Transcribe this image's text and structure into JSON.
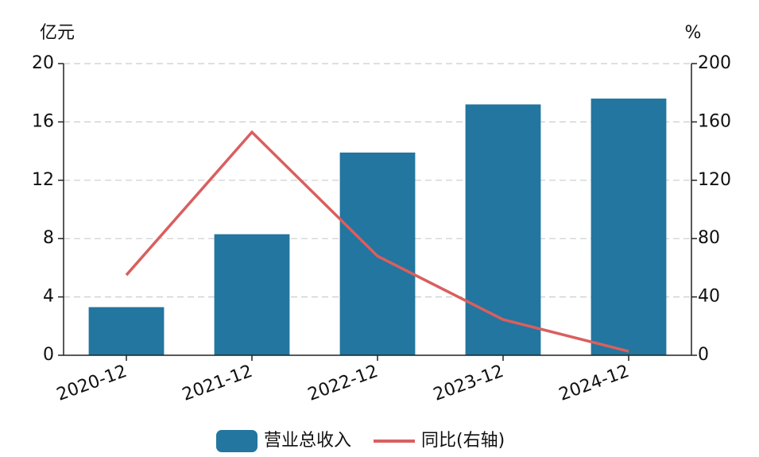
{
  "chart_data": {
    "type": "bar",
    "y_unit": "亿元",
    "y2_unit": "%",
    "categories": [
      "2020-12",
      "2021-12",
      "2022-12",
      "2023-12",
      "2024-12"
    ],
    "series": [
      {
        "name": "营业总收入",
        "type": "bar",
        "color": "#22769f",
        "values": [
          3.3,
          8.3,
          13.9,
          17.2,
          17.6
        ]
      },
      {
        "name": "同比(右轴)",
        "type": "line",
        "axis": "y2",
        "color": "#d95f5f",
        "values": [
          55,
          153,
          68,
          24.5,
          2.7
        ]
      }
    ],
    "ylim": [
      0,
      20
    ],
    "yticks": [
      0,
      4,
      8,
      12,
      16,
      20
    ],
    "y2lim": [
      0,
      200
    ],
    "y2ticks": [
      0,
      40,
      80,
      120,
      160,
      200
    ],
    "grid": true,
    "legend": "bottom"
  }
}
